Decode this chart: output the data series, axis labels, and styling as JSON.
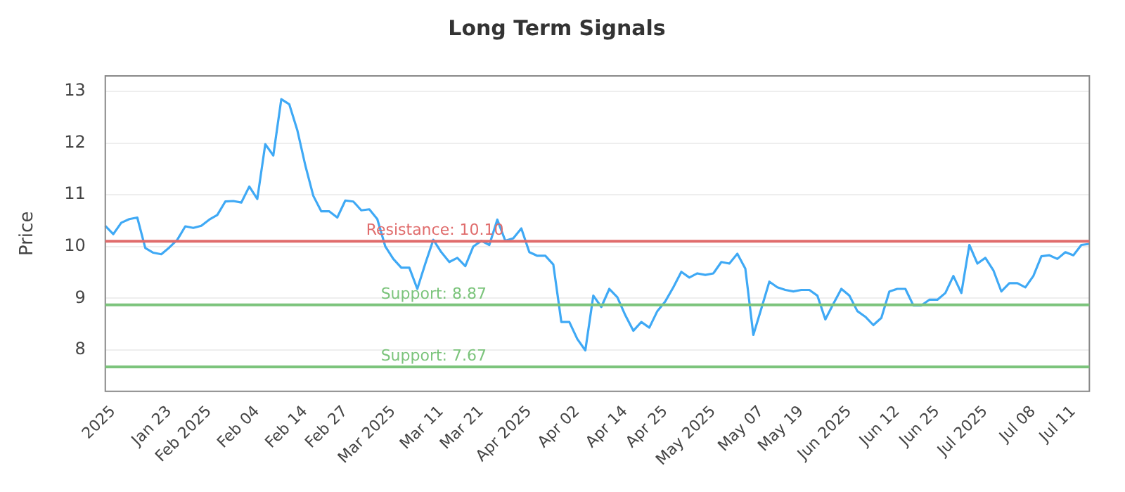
{
  "chart_data": {
    "type": "line",
    "title": "Long Term Signals",
    "ylabel": "Price",
    "categories": [
      null,
      "2025",
      null,
      null,
      null,
      null,
      null,
      null,
      "Jan 23",
      null,
      null,
      null,
      null,
      "Feb 2025",
      null,
      null,
      null,
      null,
      null,
      "Feb 04",
      null,
      null,
      null,
      null,
      null,
      "Feb 14",
      null,
      null,
      null,
      null,
      "Feb 27",
      null,
      null,
      null,
      null,
      null,
      "Mar 2025",
      null,
      null,
      null,
      null,
      null,
      "Mar 11",
      null,
      null,
      null,
      null,
      "Mar 21",
      null,
      null,
      null,
      null,
      null,
      "Apr 2025",
      null,
      null,
      null,
      null,
      null,
      "Apr 02",
      null,
      null,
      null,
      null,
      null,
      "Apr 14",
      null,
      null,
      null,
      null,
      "Apr 25",
      null,
      null,
      null,
      null,
      null,
      "May 2025",
      null,
      null,
      null,
      null,
      null,
      "May 07",
      null,
      null,
      null,
      null,
      "May 19",
      null,
      null,
      null,
      null,
      null,
      "Jun 2025",
      null,
      null,
      null,
      null,
      null,
      "Jun 12",
      null,
      null,
      null,
      null,
      "Jun 25",
      null,
      null,
      null,
      null,
      null,
      "Jul 2025",
      null,
      null,
      null,
      null,
      null,
      "Jul 08",
      null,
      null,
      null,
      null,
      "Jul 11",
      null,
      null
    ],
    "series": [
      {
        "color": "#3fa9f5",
        "values": [
          10.4,
          10.24,
          10.46,
          10.53,
          10.56,
          9.97,
          9.88,
          9.85,
          9.98,
          10.13,
          10.39,
          10.36,
          10.4,
          10.52,
          10.61,
          10.87,
          10.88,
          10.85,
          11.16,
          10.92,
          11.98,
          11.76,
          12.85,
          12.75,
          12.25,
          11.57,
          10.98,
          10.68,
          10.68,
          10.56,
          10.89,
          10.87,
          10.7,
          10.72,
          10.53,
          10.0,
          9.76,
          9.59,
          9.59,
          9.18,
          9.67,
          10.13,
          9.89,
          9.7,
          9.78,
          9.62,
          10.0,
          10.11,
          10.03,
          10.52,
          10.11,
          10.16,
          10.35,
          9.89,
          9.82,
          9.82,
          9.65,
          8.54,
          8.54,
          8.21,
          7.99,
          9.05,
          8.83,
          9.18,
          9.02,
          8.67,
          8.37,
          8.54,
          8.43,
          8.75,
          8.94,
          9.21,
          9.51,
          9.4,
          9.48,
          9.45,
          9.48,
          9.7,
          9.67,
          9.86,
          9.57,
          8.29,
          8.8,
          9.32,
          9.21,
          9.16,
          9.13,
          9.16,
          9.16,
          9.05,
          8.59,
          8.89,
          9.18,
          9.05,
          8.75,
          8.64,
          8.48,
          8.62,
          9.13,
          9.18,
          9.18,
          8.86,
          8.86,
          8.97,
          8.97,
          9.1,
          9.43,
          9.1,
          10.03,
          9.67,
          9.78,
          9.54,
          9.13,
          9.29,
          9.29,
          9.21,
          9.43,
          9.81,
          9.83,
          9.76,
          9.89,
          9.83,
          10.03,
          10.05
        ]
      }
    ],
    "ylim": [
      7.2,
      13.3
    ],
    "yticks": [
      8,
      9,
      10,
      11,
      12,
      13
    ],
    "grid": "y",
    "legend": false,
    "marker": "none",
    "line_style": "solid",
    "ref_lines": [
      {
        "axis": "y",
        "value": 10.1,
        "label": "Resistance: 10.10",
        "color": "#e06c6c"
      },
      {
        "axis": "y",
        "value": 8.87,
        "label": "Support: 8.87",
        "color": "#7cc47c"
      },
      {
        "axis": "y",
        "value": 7.67,
        "label": "Support: 7.67",
        "color": "#7cc47c"
      }
    ]
  }
}
